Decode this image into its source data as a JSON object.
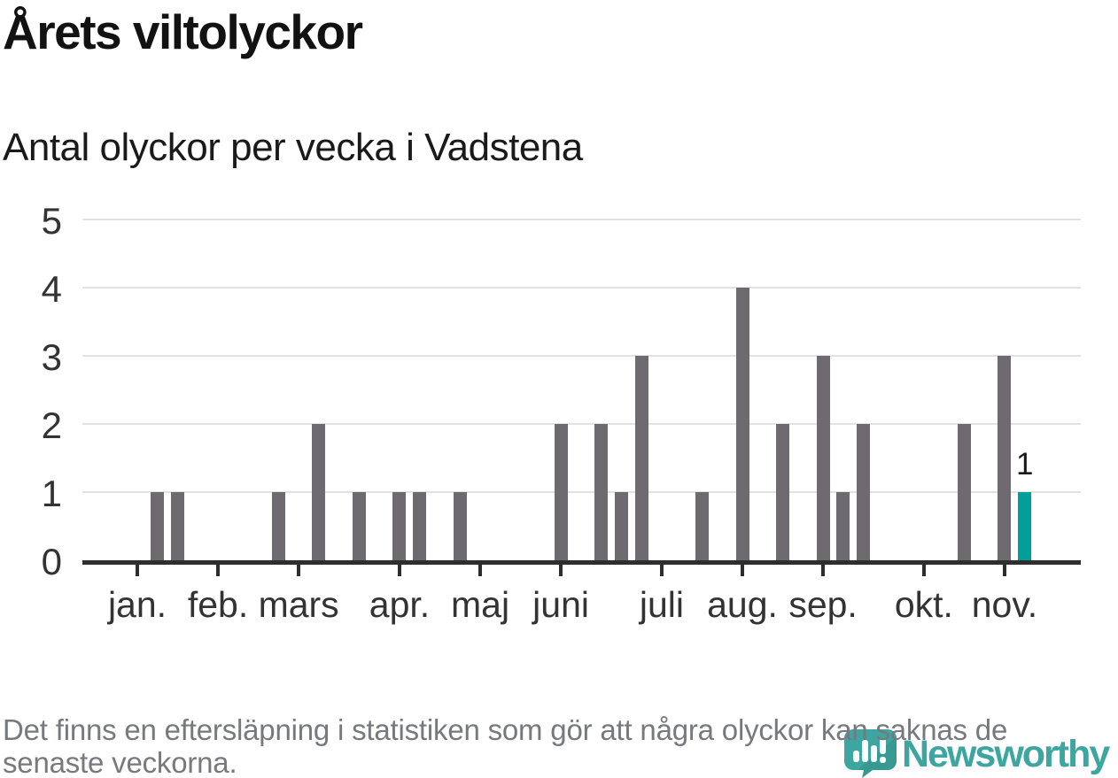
{
  "header": {
    "title": "Årets viltolyckor",
    "subtitle": "Antal olyckor per vecka i Vadstena"
  },
  "footer": {
    "note": "Det finns en eftersläpning i statistiken som gör att några olyckor kan saknas de senaste veckorna.",
    "logo_text": "Newsworthy"
  },
  "colors": {
    "bar": "#6d6a70",
    "highlight": "#00a09a",
    "logo": "#3da6a0",
    "gridline": "#e2e2e2",
    "axis": "#2e2e2e",
    "axis_label": "#333333",
    "note_text": "#76797d"
  },
  "chart_data": {
    "type": "bar",
    "title": "Årets viltolyckor",
    "subtitle": "Antal olyckor per vecka i Vadstena",
    "ylabel": "Antal olyckor",
    "xlabel": "vecka",
    "ylim": [
      0,
      5
    ],
    "grid": true,
    "y_ticks": [
      0,
      1,
      2,
      3,
      4,
      5
    ],
    "x_axis_months": [
      {
        "label": "jan.",
        "week": 0
      },
      {
        "label": "feb.",
        "week": 4
      },
      {
        "label": "mars",
        "week": 8
      },
      {
        "label": "apr.",
        "week": 13
      },
      {
        "label": "maj",
        "week": 17
      },
      {
        "label": "juni",
        "week": 21
      },
      {
        "label": "juli",
        "week": 26
      },
      {
        "label": "aug.",
        "week": 30
      },
      {
        "label": "sep.",
        "week": 34
      },
      {
        "label": "okt.",
        "week": 39
      },
      {
        "label": "nov.",
        "week": 43
      }
    ],
    "bars": [
      {
        "week": 1,
        "value": 1
      },
      {
        "week": 2,
        "value": 1
      },
      {
        "week": 7,
        "value": 1
      },
      {
        "week": 9,
        "value": 2
      },
      {
        "week": 11,
        "value": 1
      },
      {
        "week": 13,
        "value": 1
      },
      {
        "week": 14,
        "value": 1
      },
      {
        "week": 16,
        "value": 1
      },
      {
        "week": 21,
        "value": 2
      },
      {
        "week": 23,
        "value": 2
      },
      {
        "week": 24,
        "value": 1
      },
      {
        "week": 25,
        "value": 3
      },
      {
        "week": 28,
        "value": 1
      },
      {
        "week": 30,
        "value": 4
      },
      {
        "week": 32,
        "value": 2
      },
      {
        "week": 34,
        "value": 3
      },
      {
        "week": 35,
        "value": 1
      },
      {
        "week": 36,
        "value": 2
      },
      {
        "week": 41,
        "value": 2
      },
      {
        "week": 43,
        "value": 3
      },
      {
        "week": 44,
        "value": 1,
        "highlight": true,
        "label": "1"
      }
    ]
  }
}
